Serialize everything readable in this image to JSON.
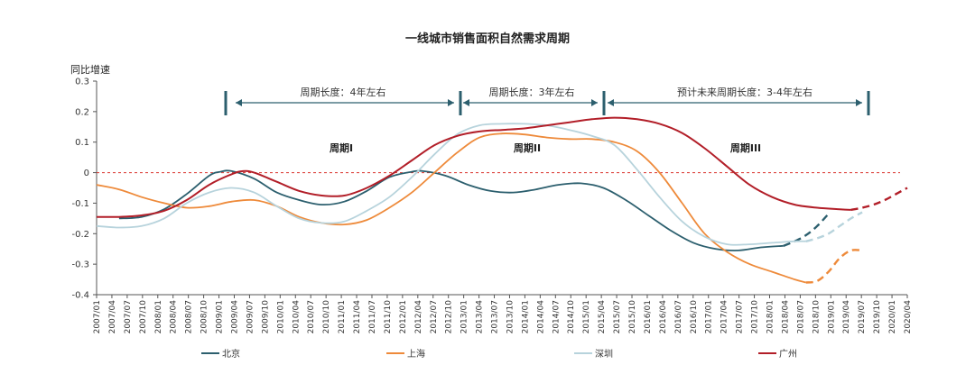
{
  "chart_data": {
    "type": "line",
    "title": "一线城市销售面积自然需求周期",
    "ylabel": "同比增速",
    "ylim": [
      -0.4,
      0.3
    ],
    "yticks": [
      "0.3",
      "0.2",
      "0.1",
      "0",
      "-0.1",
      "-0.2",
      "-0.3",
      "-0.4"
    ],
    "x_categories": [
      "2007/01",
      "2007/04",
      "2007/07",
      "2007/10",
      "2008/01",
      "2008/04",
      "2008/07",
      "2008/10",
      "2009/01",
      "2009/04",
      "2009/07",
      "2009/10",
      "2010/01",
      "2010/04",
      "2010/07",
      "2010/10",
      "2011/01",
      "2011/04",
      "2011/07",
      "2011/10",
      "2012/01",
      "2012/04",
      "2012/07",
      "2012/10",
      "2013/01",
      "2013/04",
      "2013/07",
      "2013/10",
      "2014/01",
      "2014/04",
      "2014/07",
      "2014/10",
      "2015/01",
      "2015/04",
      "2015/07",
      "2015/10",
      "2016/01",
      "2016/04",
      "2016/07",
      "2016/10",
      "2017/01",
      "2017/04",
      "2017/07",
      "2017/10",
      "2018/01",
      "2018/04",
      "2018/07",
      "2018/10",
      "2019/01",
      "2019/04",
      "2019/07",
      "2019/10",
      "2020/01",
      "2020/04"
    ],
    "x_tick_labels": [
      "2007/01",
      "2007/04",
      "2007/07",
      "2007/10",
      "2008/01",
      "2008/04",
      "2008/07",
      "2008/10",
      "2009/01",
      "2009/04",
      "2009/07",
      "2009/10",
      "2010/01",
      "2010/04",
      "2010/07",
      "2010/10",
      "2011/01",
      "2011/04",
      "2011/07",
      "2011/10",
      "2012/01",
      "2012/04",
      "2012/07",
      "2012/10",
      "2013/01",
      "2013/04",
      "2013/07",
      "2013/10",
      "2014/01",
      "2014/04",
      "2014/07",
      "2014/10",
      "2015/01",
      "2015/04",
      "2015/07",
      "2015/10",
      "2016/01",
      "2016/04",
      "2016/07",
      "2016/10",
      "2017/01",
      "2017/04",
      "2017/07",
      "2017/10",
      "2018/01",
      "2018/04",
      "2018/07",
      "2018/10",
      "2019/01",
      "2019/04",
      "2019/07",
      "2019/10",
      "2020/01",
      "2020/04"
    ],
    "zero_line": {
      "value": 0,
      "color": "#d9322b",
      "style": "dashed"
    },
    "series": [
      {
        "name": "北京",
        "color": "#2c5f6e",
        "actual": [
          [
            2,
            -0.15
          ],
          [
            4,
            -0.145
          ],
          [
            6,
            -0.12
          ],
          [
            8,
            -0.07
          ],
          [
            10,
            -0.01
          ],
          [
            11,
            0.003
          ],
          [
            12,
            0.005
          ],
          [
            14,
            -0.02
          ],
          [
            16,
            -0.065
          ],
          [
            18,
            -0.09
          ],
          [
            20,
            -0.105
          ],
          [
            22,
            -0.095
          ],
          [
            24,
            -0.06
          ],
          [
            26,
            -0.015
          ],
          [
            28,
            0.003
          ],
          [
            29,
            0.005
          ],
          [
            31,
            -0.01
          ],
          [
            33,
            -0.04
          ],
          [
            35,
            -0.06
          ],
          [
            37,
            -0.065
          ],
          [
            39,
            -0.055
          ],
          [
            41,
            -0.04
          ],
          [
            43,
            -0.035
          ],
          [
            45,
            -0.05
          ],
          [
            47,
            -0.09
          ],
          [
            49,
            -0.14
          ],
          [
            51,
            -0.19
          ],
          [
            53,
            -0.23
          ],
          [
            55,
            -0.25
          ],
          [
            57,
            -0.255
          ],
          [
            59,
            -0.245
          ],
          [
            61,
            -0.24
          ]
        ],
        "forecast": [
          [
            61,
            -0.24
          ],
          [
            62,
            -0.225
          ],
          [
            63,
            -0.205
          ],
          [
            64,
            -0.175
          ],
          [
            65,
            -0.135
          ]
        ]
      },
      {
        "name": "上海",
        "color": "#ee8a3a",
        "actual": [
          [
            0,
            -0.04
          ],
          [
            2,
            -0.055
          ],
          [
            4,
            -0.08
          ],
          [
            6,
            -0.1
          ],
          [
            8,
            -0.115
          ],
          [
            10,
            -0.11
          ],
          [
            12,
            -0.095
          ],
          [
            14,
            -0.09
          ],
          [
            16,
            -0.11
          ],
          [
            18,
            -0.145
          ],
          [
            20,
            -0.165
          ],
          [
            22,
            -0.17
          ],
          [
            24,
            -0.155
          ],
          [
            26,
            -0.115
          ],
          [
            28,
            -0.065
          ],
          [
            30,
            0.0
          ],
          [
            32,
            0.065
          ],
          [
            34,
            0.115
          ],
          [
            36,
            0.128
          ],
          [
            38,
            0.125
          ],
          [
            40,
            0.115
          ],
          [
            42,
            0.11
          ],
          [
            44,
            0.11
          ],
          [
            46,
            0.1
          ],
          [
            48,
            0.07
          ],
          [
            50,
            0.0
          ],
          [
            52,
            -0.1
          ],
          [
            54,
            -0.2
          ],
          [
            56,
            -0.26
          ],
          [
            58,
            -0.3
          ],
          [
            60,
            -0.325
          ],
          [
            62,
            -0.35
          ],
          [
            63,
            -0.36
          ]
        ],
        "forecast": [
          [
            63,
            -0.36
          ],
          [
            64,
            -0.355
          ],
          [
            65,
            -0.325
          ],
          [
            66,
            -0.28
          ],
          [
            67,
            -0.255
          ],
          [
            68,
            -0.255
          ]
        ]
      },
      {
        "name": "深圳",
        "color": "#b7d3dc",
        "actual": [
          [
            0,
            -0.175
          ],
          [
            2,
            -0.18
          ],
          [
            4,
            -0.175
          ],
          [
            6,
            -0.15
          ],
          [
            8,
            -0.1
          ],
          [
            10,
            -0.065
          ],
          [
            12,
            -0.05
          ],
          [
            14,
            -0.065
          ],
          [
            16,
            -0.11
          ],
          [
            18,
            -0.15
          ],
          [
            20,
            -0.165
          ],
          [
            22,
            -0.16
          ],
          [
            24,
            -0.125
          ],
          [
            26,
            -0.08
          ],
          [
            28,
            -0.015
          ],
          [
            30,
            0.06
          ],
          [
            32,
            0.125
          ],
          [
            34,
            0.155
          ],
          [
            36,
            0.16
          ],
          [
            38,
            0.16
          ],
          [
            40,
            0.155
          ],
          [
            42,
            0.14
          ],
          [
            44,
            0.12
          ],
          [
            46,
            0.09
          ],
          [
            48,
            0.01
          ],
          [
            50,
            -0.08
          ],
          [
            52,
            -0.16
          ],
          [
            54,
            -0.21
          ],
          [
            56,
            -0.235
          ],
          [
            58,
            -0.235
          ],
          [
            60,
            -0.23
          ],
          [
            62,
            -0.225
          ],
          [
            63,
            -0.225
          ]
        ],
        "forecast": [
          [
            63,
            -0.225
          ],
          [
            64,
            -0.215
          ],
          [
            65,
            -0.2
          ],
          [
            66,
            -0.175
          ],
          [
            67,
            -0.15
          ],
          [
            68,
            -0.13
          ]
        ]
      },
      {
        "name": "广州",
        "color": "#b21e28",
        "actual": [
          [
            0,
            -0.145
          ],
          [
            2,
            -0.145
          ],
          [
            4,
            -0.14
          ],
          [
            6,
            -0.125
          ],
          [
            8,
            -0.09
          ],
          [
            10,
            -0.04
          ],
          [
            12,
            -0.005
          ],
          [
            13,
            0.005
          ],
          [
            14,
            0.0
          ],
          [
            16,
            -0.03
          ],
          [
            18,
            -0.06
          ],
          [
            20,
            -0.075
          ],
          [
            22,
            -0.075
          ],
          [
            24,
            -0.05
          ],
          [
            26,
            -0.01
          ],
          [
            28,
            0.04
          ],
          [
            30,
            0.09
          ],
          [
            32,
            0.12
          ],
          [
            34,
            0.135
          ],
          [
            36,
            0.14
          ],
          [
            38,
            0.145
          ],
          [
            40,
            0.155
          ],
          [
            42,
            0.165
          ],
          [
            44,
            0.175
          ],
          [
            46,
            0.18
          ],
          [
            48,
            0.175
          ],
          [
            50,
            0.16
          ],
          [
            52,
            0.13
          ],
          [
            54,
            0.08
          ],
          [
            56,
            0.02
          ],
          [
            58,
            -0.04
          ],
          [
            60,
            -0.08
          ],
          [
            62,
            -0.105
          ],
          [
            64,
            -0.115
          ],
          [
            66,
            -0.12
          ],
          [
            67,
            -0.122
          ]
        ],
        "forecast": [
          [
            67,
            -0.122
          ],
          [
            68,
            -0.115
          ],
          [
            69,
            -0.105
          ],
          [
            70,
            -0.09
          ],
          [
            71,
            -0.07
          ],
          [
            72,
            -0.05
          ]
        ]
      }
    ],
    "phase_labels": [
      "周期I",
      "周期II",
      "周期III"
    ],
    "cycle_annotations": [
      "周期长度：4年左右",
      "周期长度：3年左右",
      "预计未来周期长度：3-4年左右"
    ],
    "legend_position": "bottom",
    "grid": false
  }
}
